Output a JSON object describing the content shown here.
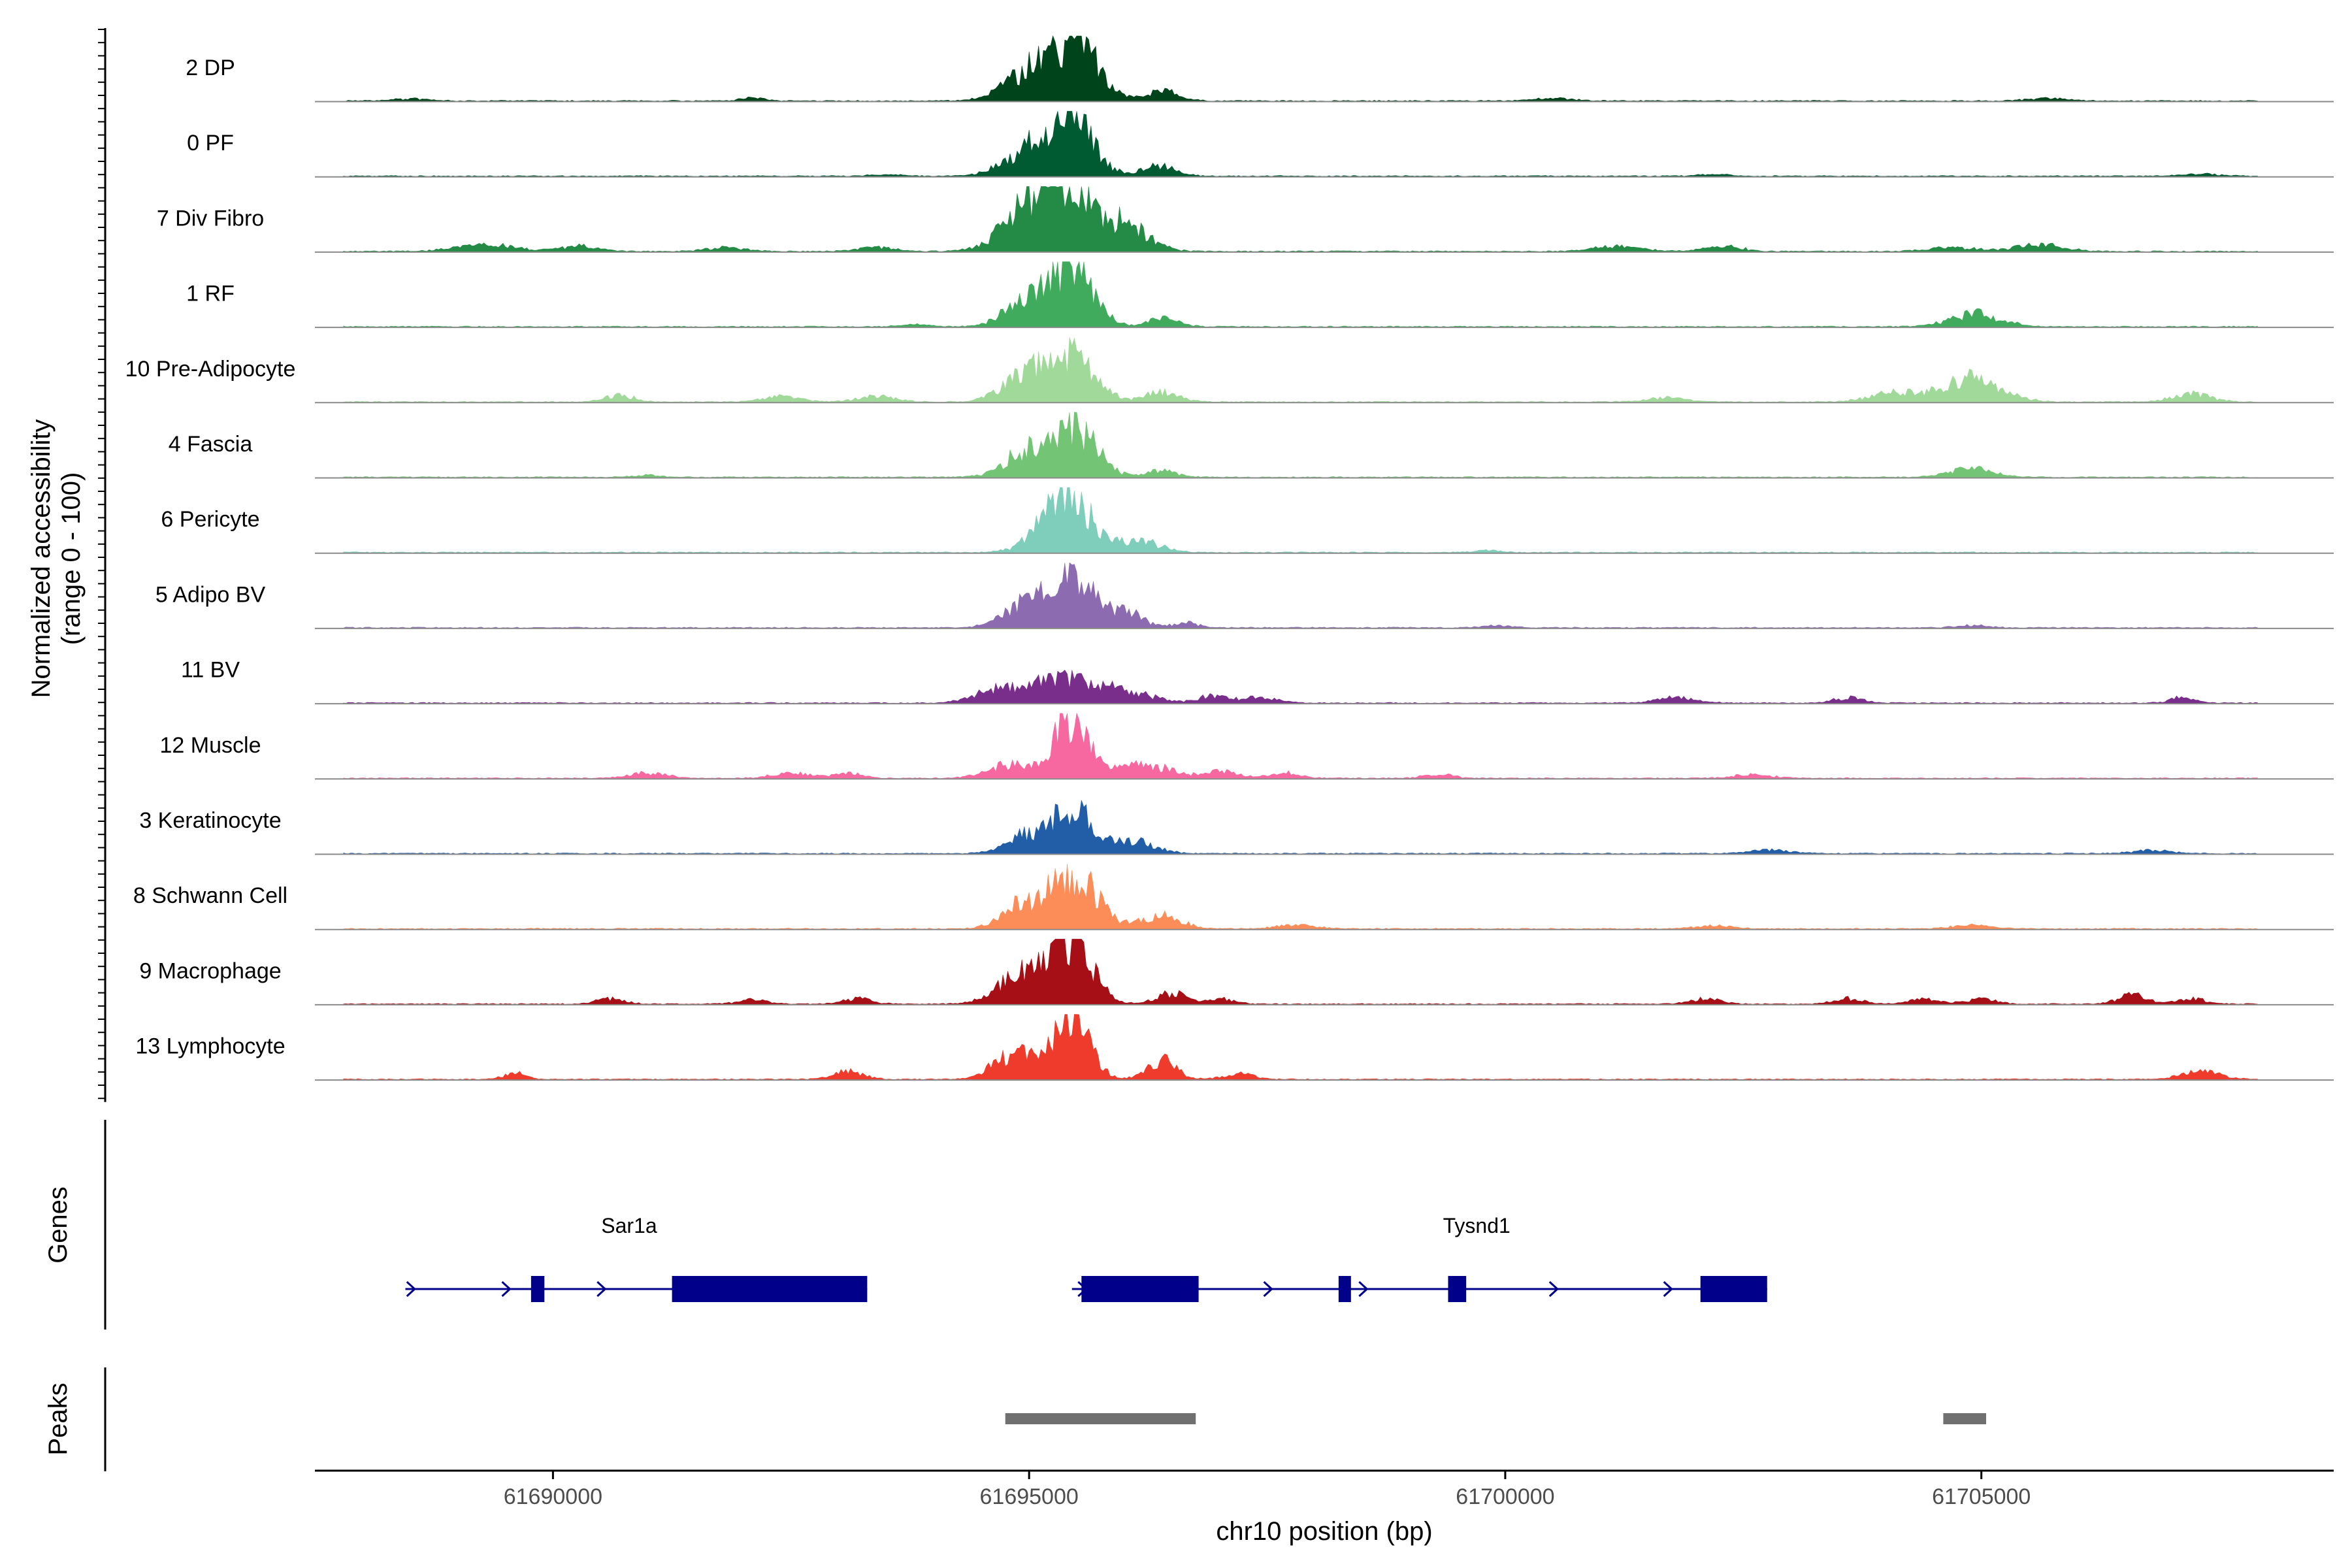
{
  "chart_data": {
    "type": "area",
    "title": "",
    "ylabel_line1": "Normalized accessibility",
    "ylabel_line2": "(range 0 - 100)",
    "xlabel": "chr10 position (bp)",
    "xlim": [
      61687500,
      61708700
    ],
    "x_ticks": [
      61690000,
      61695000,
      61700000,
      61705000
    ],
    "x_tick_labels": [
      "61690000",
      "61695000",
      "61700000",
      "61705000"
    ],
    "ylim": [
      0,
      100
    ],
    "tracks": [
      {
        "name": "2 DP",
        "color": "#00441b",
        "peaks": [
          [
            61695480,
            88,
            240
          ],
          [
            61694980,
            40,
            250
          ],
          [
            61696400,
            14,
            170
          ],
          [
            61692100,
            5,
            120
          ],
          [
            61700500,
            4,
            200
          ],
          [
            61705700,
            4,
            200
          ],
          [
            61688500,
            3,
            200
          ]
        ]
      },
      {
        "name": "0 PF",
        "color": "#005a32",
        "peaks": [
          [
            61695430,
            86,
            230
          ],
          [
            61694950,
            35,
            240
          ],
          [
            61696350,
            16,
            180
          ],
          [
            61693500,
            3,
            150
          ],
          [
            61707300,
            3,
            200
          ],
          [
            61702200,
            3,
            150
          ]
        ]
      },
      {
        "name": "7 Div Fibro",
        "color": "#238b45",
        "peaks": [
          [
            61695400,
            92,
            250
          ],
          [
            61694950,
            55,
            260
          ],
          [
            61696000,
            40,
            240
          ],
          [
            61689300,
            10,
            300
          ],
          [
            61690300,
            8,
            200
          ],
          [
            61691800,
            6,
            200
          ],
          [
            61693400,
            6,
            200
          ],
          [
            61701200,
            8,
            250
          ],
          [
            61702300,
            7,
            200
          ],
          [
            61704700,
            6,
            250
          ],
          [
            61705600,
            10,
            250
          ]
        ]
      },
      {
        "name": "1 RF",
        "color": "#41ab5d",
        "peaks": [
          [
            61695450,
            92,
            220
          ],
          [
            61694950,
            35,
            220
          ],
          [
            61696400,
            12,
            160
          ],
          [
            61704950,
            20,
            260
          ],
          [
            61693800,
            3,
            150
          ]
        ]
      },
      {
        "name": "10 Pre-Adipocyte",
        "color": "#a1d99b",
        "peaks": [
          [
            61695400,
            70,
            260
          ],
          [
            61694900,
            30,
            220
          ],
          [
            61696400,
            15,
            170
          ],
          [
            61690700,
            10,
            150
          ],
          [
            61692400,
            8,
            200
          ],
          [
            61693400,
            8,
            200
          ],
          [
            61704900,
            35,
            300
          ],
          [
            61704100,
            14,
            250
          ],
          [
            61707200,
            12,
            200
          ],
          [
            61701700,
            6,
            200
          ]
        ]
      },
      {
        "name": "4 Fascia",
        "color": "#74c476",
        "peaks": [
          [
            61695450,
            78,
            240
          ],
          [
            61694950,
            35,
            220
          ],
          [
            61696400,
            10,
            150
          ],
          [
            61704900,
            14,
            220
          ],
          [
            61691000,
            3,
            150
          ]
        ]
      },
      {
        "name": "6 Pericyte",
        "color": "#7fcdbb",
        "peaks": [
          [
            61695400,
            82,
            270
          ],
          [
            61696200,
            15,
            200
          ],
          [
            61699800,
            3,
            150
          ]
        ]
      },
      {
        "name": "5 Adipo BV",
        "color": "#8c6bb1",
        "peaks": [
          [
            61695450,
            90,
            200
          ],
          [
            61694950,
            35,
            220
          ],
          [
            61696000,
            25,
            180
          ],
          [
            61696650,
            8,
            120
          ],
          [
            61699900,
            3,
            150
          ],
          [
            61704900,
            4,
            150
          ]
        ]
      },
      {
        "name": "11 BV",
        "color": "#7a2e8c",
        "peaks": [
          [
            61695350,
            40,
            260
          ],
          [
            61694700,
            22,
            240
          ],
          [
            61696000,
            20,
            260
          ],
          [
            61696900,
            10,
            150
          ],
          [
            61697400,
            8,
            200
          ],
          [
            61701800,
            8,
            200
          ],
          [
            61703600,
            8,
            150
          ],
          [
            61707100,
            8,
            120
          ]
        ]
      },
      {
        "name": "12 Muscle",
        "color": "#f768a1",
        "peaks": [
          [
            61695450,
            92,
            180
          ],
          [
            61694800,
            20,
            240
          ],
          [
            61696200,
            22,
            260
          ],
          [
            61691000,
            8,
            200
          ],
          [
            61692500,
            8,
            200
          ],
          [
            61693100,
            8,
            150
          ],
          [
            61697000,
            10,
            200
          ],
          [
            61697700,
            8,
            150
          ],
          [
            61699300,
            6,
            150
          ],
          [
            61702600,
            6,
            200
          ]
        ]
      },
      {
        "name": "3 Keratinocyte",
        "color": "#225ea8",
        "peaks": [
          [
            61695450,
            70,
            200
          ],
          [
            61694950,
            28,
            200
          ],
          [
            61696100,
            18,
            220
          ],
          [
            61702800,
            5,
            200
          ],
          [
            61706800,
            5,
            200
          ]
        ]
      },
      {
        "name": "8 Schwann Cell",
        "color": "#fc8d59",
        "peaks": [
          [
            61695450,
            82,
            260
          ],
          [
            61694900,
            32,
            200
          ],
          [
            61696400,
            20,
            200
          ],
          [
            61697800,
            6,
            200
          ],
          [
            61702200,
            5,
            200
          ],
          [
            61704900,
            5,
            200
          ]
        ]
      },
      {
        "name": "9 Macrophage",
        "color": "#a50f15",
        "peaks": [
          [
            61695420,
            92,
            230
          ],
          [
            61694850,
            40,
            230
          ],
          [
            61696500,
            16,
            150
          ],
          [
            61690600,
            8,
            150
          ],
          [
            61692100,
            6,
            150
          ],
          [
            61693200,
            8,
            150
          ],
          [
            61697000,
            8,
            150
          ],
          [
            61702100,
            8,
            150
          ],
          [
            61703600,
            8,
            150
          ],
          [
            61704400,
            8,
            150
          ],
          [
            61705000,
            8,
            150
          ],
          [
            61706600,
            14,
            150
          ],
          [
            61707200,
            8,
            150
          ]
        ]
      },
      {
        "name": "13 Lymphocyte",
        "color": "#ef3b2c",
        "peaks": [
          [
            61695430,
            100,
            190
          ],
          [
            61694850,
            40,
            210
          ],
          [
            61696400,
            28,
            150
          ],
          [
            61689600,
            12,
            100
          ],
          [
            61693100,
            12,
            150
          ],
          [
            61697200,
            8,
            150
          ],
          [
            61707300,
            12,
            200
          ]
        ]
      }
    ],
    "genes_label": "Genes",
    "genes": [
      {
        "name": "Sar1a",
        "label_x": 61690800,
        "color": "#00008b",
        "line": [
          61688450,
          61693300
        ],
        "exons": [
          [
            61689770,
            61689910
          ],
          [
            61691250,
            61693300
          ]
        ],
        "arrows": [
          61688500,
          61689500,
          61690500
        ]
      },
      {
        "name": "Tysnd1",
        "label_x": 61699700,
        "color": "#00008b",
        "line": [
          61695450,
          61702750
        ],
        "exons": [
          [
            61695550,
            61696780
          ],
          [
            61698250,
            61698380
          ],
          [
            61699400,
            61699590
          ],
          [
            61702050,
            61702750
          ]
        ],
        "arrows": [
          61695550,
          61697500,
          61698500,
          61700500,
          61701700
        ]
      }
    ],
    "peaks_label": "Peaks",
    "peak_regions": [
      [
        61694750,
        61696750
      ],
      [
        61704600,
        61705050
      ]
    ],
    "peak_color": "#707070"
  }
}
